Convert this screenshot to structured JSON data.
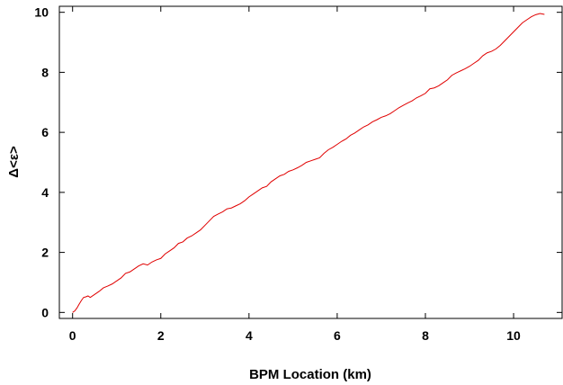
{
  "chart_data": {
    "type": "line",
    "title": "",
    "xlabel": "BPM Location (km)",
    "ylabel": "Δ<ε>",
    "xlim": [
      -0.3,
      11.1
    ],
    "ylim": [
      -0.2,
      10.2
    ],
    "x_ticks": [
      0,
      2,
      4,
      6,
      8,
      10
    ],
    "y_ticks": [
      0,
      2,
      4,
      6,
      8,
      10
    ],
    "grid": false,
    "legend": "none",
    "line_color": "#e00000",
    "series": [
      {
        "x": [
          0.0,
          0.05,
          0.1,
          0.15,
          0.2,
          0.25,
          0.3,
          0.35,
          0.4,
          0.5,
          0.6,
          0.7,
          0.8,
          0.9,
          1.0,
          1.1,
          1.2,
          1.3,
          1.4,
          1.5,
          1.6,
          1.7,
          1.8,
          1.9,
          2.0,
          2.1,
          2.2,
          2.3,
          2.4,
          2.5,
          2.6,
          2.7,
          2.8,
          2.9,
          3.0,
          3.1,
          3.2,
          3.3,
          3.4,
          3.5,
          3.6,
          3.7,
          3.8,
          3.9,
          4.0,
          4.1,
          4.2,
          4.3,
          4.4,
          4.5,
          4.6,
          4.7,
          4.8,
          4.9,
          5.0,
          5.1,
          5.2,
          5.3,
          5.4,
          5.5,
          5.6,
          5.7,
          5.8,
          5.9,
          6.0,
          6.1,
          6.2,
          6.3,
          6.4,
          6.5,
          6.6,
          6.7,
          6.8,
          6.9,
          7.0,
          7.1,
          7.2,
          7.3,
          7.4,
          7.5,
          7.6,
          7.7,
          7.8,
          7.9,
          8.0,
          8.1,
          8.2,
          8.3,
          8.4,
          8.5,
          8.6,
          8.7,
          8.8,
          8.9,
          9.0,
          9.1,
          9.2,
          9.3,
          9.4,
          9.5,
          9.6,
          9.7,
          9.8,
          9.9,
          10.0,
          10.1,
          10.2,
          10.3,
          10.4,
          10.5,
          10.6,
          10.7
        ],
        "y": [
          0.0,
          0.05,
          0.15,
          0.28,
          0.4,
          0.5,
          0.52,
          0.55,
          0.5,
          0.6,
          0.7,
          0.82,
          0.88,
          0.95,
          1.05,
          1.15,
          1.3,
          1.35,
          1.45,
          1.55,
          1.62,
          1.58,
          1.68,
          1.75,
          1.8,
          1.95,
          2.05,
          2.15,
          2.3,
          2.35,
          2.48,
          2.55,
          2.65,
          2.75,
          2.9,
          3.05,
          3.2,
          3.28,
          3.35,
          3.45,
          3.48,
          3.55,
          3.62,
          3.72,
          3.85,
          3.95,
          4.05,
          4.15,
          4.2,
          4.35,
          4.45,
          4.55,
          4.6,
          4.7,
          4.75,
          4.82,
          4.9,
          5.0,
          5.05,
          5.1,
          5.15,
          5.3,
          5.42,
          5.5,
          5.6,
          5.7,
          5.78,
          5.9,
          5.98,
          6.08,
          6.18,
          6.25,
          6.35,
          6.42,
          6.5,
          6.55,
          6.62,
          6.72,
          6.82,
          6.9,
          6.98,
          7.05,
          7.15,
          7.22,
          7.3,
          7.45,
          7.48,
          7.55,
          7.65,
          7.75,
          7.9,
          7.98,
          8.05,
          8.12,
          8.2,
          8.3,
          8.4,
          8.55,
          8.65,
          8.7,
          8.78,
          8.9,
          9.05,
          9.2,
          9.35,
          9.5,
          9.65,
          9.75,
          9.85,
          9.92,
          9.96,
          9.93
        ]
      }
    ]
  }
}
